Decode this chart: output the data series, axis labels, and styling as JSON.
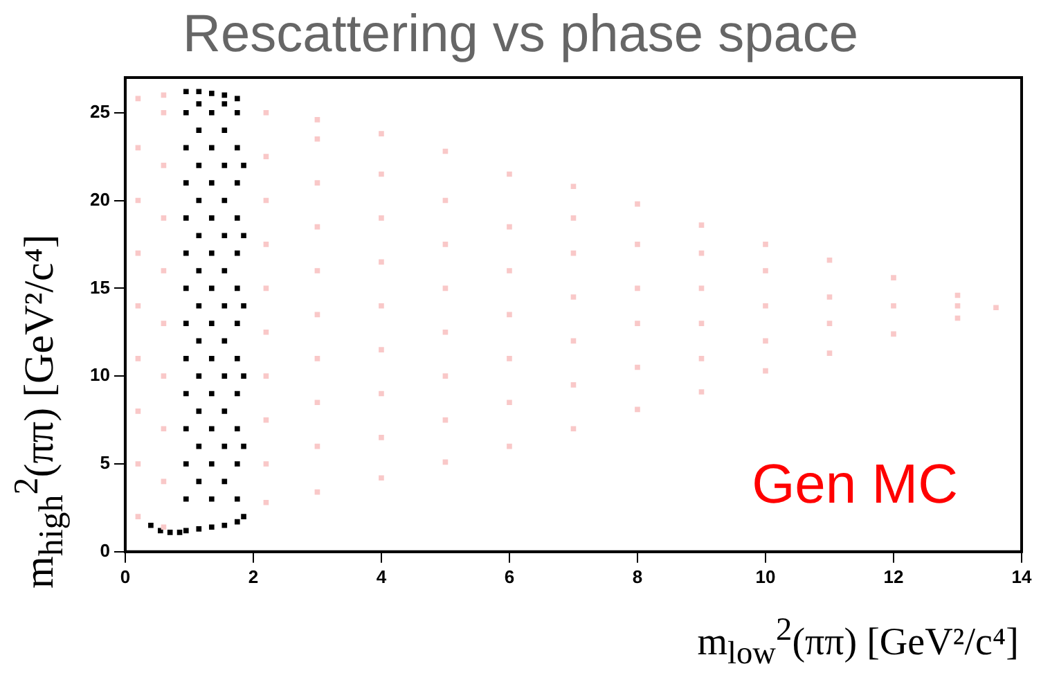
{
  "chart_data": {
    "type": "scatter",
    "title": "Rescattering vs phase space",
    "xlabel": "m$_{low}$$^{2}$(ππ) [GeV²/c⁴]",
    "ylabel": "m$_{high}$$^{2}$(ππ) [GeV²/c⁴]",
    "annotations": [
      "Gen MC"
    ],
    "xlim": [
      0,
      14
    ],
    "ylim": [
      0,
      27
    ],
    "xticks": [
      0,
      2,
      4,
      6,
      8,
      10,
      12,
      14
    ],
    "yticks": [
      0,
      5,
      10,
      15,
      20,
      25
    ],
    "marker": "square",
    "series": [
      {
        "color": "#f9c8c8",
        "x": [
          0.2,
          0.2,
          0.2,
          0.2,
          0.2,
          0.2,
          0.2,
          0.2,
          0.2,
          0.6,
          0.6,
          0.6,
          0.6,
          0.6,
          0.6,
          0.6,
          0.6,
          0.6,
          0.6,
          2.2,
          2.2,
          2.2,
          2.2,
          2.2,
          2.2,
          2.2,
          2.2,
          2.2,
          2.2,
          3,
          3,
          3,
          3,
          3,
          3,
          3,
          3,
          3,
          3,
          4,
          4,
          4,
          4,
          4,
          4,
          4,
          4,
          4,
          5,
          5,
          5,
          5,
          5,
          5,
          5,
          5,
          6,
          6,
          6,
          6,
          6,
          6,
          6,
          7,
          7,
          7,
          7,
          7,
          7,
          7,
          8,
          8,
          8,
          8,
          8,
          8,
          9,
          9,
          9,
          9,
          9,
          9,
          10,
          10,
          10,
          10,
          10,
          11,
          11,
          11,
          11,
          12,
          12,
          12,
          13,
          13,
          13,
          13.6
        ],
        "values": [
          2,
          5,
          8,
          11,
          14,
          17,
          20,
          23,
          25.8,
          1.4,
          4,
          7,
          10,
          13,
          16,
          19,
          22,
          25,
          26,
          2.8,
          5,
          7.5,
          10,
          12.5,
          15,
          17.5,
          20,
          22.5,
          25,
          3.4,
          6,
          8.5,
          11,
          13.5,
          16,
          18.5,
          21,
          23.5,
          24.6,
          4.2,
          6.5,
          9,
          11.5,
          14,
          16.5,
          19,
          21.5,
          23.8,
          5.1,
          7.5,
          10,
          12.5,
          15,
          17.5,
          20,
          22.8,
          6,
          8.5,
          11,
          13.5,
          16,
          18.5,
          21.5,
          7,
          9.5,
          12,
          14.5,
          17,
          19,
          20.8,
          8.1,
          10.5,
          13,
          15,
          17.5,
          19.8,
          9.1,
          11,
          13,
          15,
          17,
          18.6,
          10.3,
          12,
          14,
          16,
          17.5,
          11.3,
          13,
          14.5,
          16.6,
          12.4,
          14,
          15.6,
          13.3,
          14,
          14.6,
          13.9
        ]
      },
      {
        "color": "#000000",
        "x": [
          0.4,
          0.55,
          0.7,
          0.85,
          0.95,
          0.95,
          0.95,
          0.95,
          0.95,
          0.95,
          0.95,
          0.95,
          0.95,
          0.95,
          0.95,
          0.95,
          0.95,
          0.95,
          1.15,
          1.15,
          1.15,
          1.15,
          1.15,
          1.15,
          1.15,
          1.15,
          1.15,
          1.15,
          1.15,
          1.15,
          1.15,
          1.15,
          1.35,
          1.35,
          1.35,
          1.35,
          1.35,
          1.35,
          1.35,
          1.35,
          1.35,
          1.35,
          1.35,
          1.35,
          1.35,
          1.35,
          1.55,
          1.55,
          1.55,
          1.55,
          1.55,
          1.55,
          1.55,
          1.55,
          1.55,
          1.55,
          1.55,
          1.55,
          1.55,
          1.55,
          1.75,
          1.75,
          1.75,
          1.75,
          1.75,
          1.75,
          1.75,
          1.75,
          1.75,
          1.75,
          1.75,
          1.75,
          1.75,
          1.75,
          1.85,
          1.85,
          1.85,
          1.85,
          1.85,
          1.85
        ],
        "values": [
          1.5,
          1.2,
          1.1,
          1.1,
          1.2,
          3,
          5,
          7,
          9,
          11,
          13,
          15,
          17,
          19,
          21,
          23,
          25,
          26.2,
          1.3,
          4,
          6,
          8,
          10,
          12,
          14,
          16,
          18,
          20,
          22,
          24,
          25.5,
          26.2,
          1.4,
          3,
          5,
          7,
          9,
          11,
          13,
          15,
          17,
          19,
          21,
          23,
          25,
          26.1,
          1.5,
          4,
          6,
          8,
          10,
          12,
          14,
          16,
          18,
          20,
          22,
          24,
          25.5,
          26,
          1.7,
          3,
          5,
          7,
          9,
          11,
          13,
          15,
          17,
          19,
          21,
          23,
          25,
          25.8,
          2,
          6,
          10,
          14,
          18,
          22
        ]
      }
    ]
  }
}
